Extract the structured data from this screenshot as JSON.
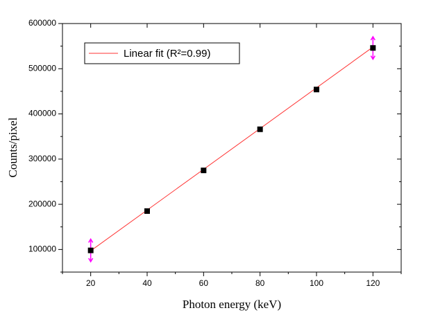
{
  "chart_data": {
    "type": "scatter",
    "xlabel": "Photon energy (keV)",
    "ylabel": "Counts/pixel",
    "xlim": [
      10,
      130
    ],
    "xticks": [
      20,
      40,
      60,
      80,
      100,
      120
    ],
    "ylim": [
      50000,
      600000
    ],
    "yticks": [
      100000,
      200000,
      300000,
      400000,
      500000,
      600000
    ],
    "series": [
      {
        "x": [
          20,
          40,
          60,
          80,
          100,
          120
        ],
        "values": [
          98000,
          185000,
          275000,
          366000,
          454000,
          546000
        ],
        "errors": [
          25000,
          3000,
          3000,
          3000,
          3000,
          25000
        ],
        "color": "#000000",
        "error_color": "#ff00ff"
      },
      {
        "name": "Linear fit (R²=0.99)",
        "x": [
          20,
          120
        ],
        "values": [
          97000,
          548000
        ],
        "color": "#ff3333"
      }
    ]
  }
}
